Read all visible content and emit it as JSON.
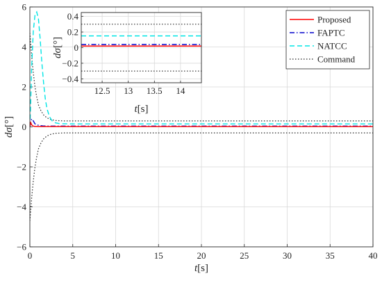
{
  "chart_data": [
    {
      "type": "line",
      "role": "main",
      "xlabel_italic": "t",
      "xlabel_unit": "[s]",
      "ylabel_italic": "dσ",
      "ylabel_unit": "[°]",
      "xlim": [
        0,
        40
      ],
      "ylim": [
        -6,
        6
      ],
      "xticks": [
        0,
        5,
        10,
        15,
        20,
        25,
        30,
        35,
        40
      ],
      "yticks": [
        -6,
        -4,
        -2,
        0,
        2,
        4,
        6
      ],
      "grid": true,
      "legend_position": "top-right",
      "series": [
        {
          "name": "Proposed",
          "color": "#ff0000",
          "dash": "solid",
          "x": [
            0,
            0.05,
            0.1,
            0.2,
            0.3,
            0.5,
            1,
            2,
            5,
            10,
            40
          ],
          "y": [
            0,
            0.15,
            0.22,
            0.12,
            0.06,
            0.03,
            0.02,
            0.02,
            0.02,
            0.02,
            0.02
          ]
        },
        {
          "name": "FAPTC",
          "color": "#0000cc",
          "dash": "dashdot",
          "x": [
            0,
            0.1,
            0.2,
            0.4,
            0.6,
            1,
            1.5,
            2,
            5,
            10,
            40
          ],
          "y": [
            0,
            0.2,
            0.4,
            0.3,
            0.15,
            0.08,
            0.05,
            0.04,
            0.04,
            0.04,
            0.04
          ]
        },
        {
          "name": "NATCC",
          "color": "#00e5e5",
          "dash": "dashed",
          "x": [
            0,
            0.1,
            0.2,
            0.4,
            0.6,
            0.8,
            1.0,
            1.2,
            1.4,
            1.6,
            1.8,
            2.0,
            2.3,
            2.6,
            3.0,
            3.5,
            5,
            10,
            40
          ],
          "y": [
            0,
            1.2,
            2.9,
            4.8,
            5.6,
            5.75,
            5.4,
            4.4,
            3.2,
            2.2,
            1.4,
            0.9,
            0.5,
            0.3,
            0.2,
            0.16,
            0.15,
            0.15,
            0.15
          ]
        },
        {
          "name": "Command",
          "color": "#222222",
          "dash": "dotted",
          "x": [
            0,
            0.2,
            0.4,
            0.6,
            0.8,
            1.0,
            1.3,
            1.6,
            2.0,
            2.5,
            3.0,
            4.0,
            5,
            10,
            40
          ],
          "y": [
            4.7,
            3.6,
            2.7,
            2.0,
            1.5,
            1.1,
            0.8,
            0.6,
            0.45,
            0.36,
            0.32,
            0.3,
            0.3,
            0.3,
            0.3
          ],
          "mirror": true
        }
      ]
    },
    {
      "type": "line",
      "role": "inset",
      "xlabel_italic": "t",
      "xlabel_unit": "[s]",
      "ylabel_italic": "dσ",
      "ylabel_unit": "[°]",
      "xlim": [
        12.1,
        14.4
      ],
      "ylim": [
        -0.45,
        0.45
      ],
      "xticks": [
        12.5,
        13,
        13.5,
        14
      ],
      "yticks": [
        0.4,
        0.2,
        0,
        -0.2,
        -0.4
      ],
      "grid": true,
      "series_values": {
        "Proposed": 0.02,
        "FAPTC": 0.04,
        "NATCC": 0.15,
        "Command": [
          0.3,
          -0.3
        ]
      }
    }
  ]
}
